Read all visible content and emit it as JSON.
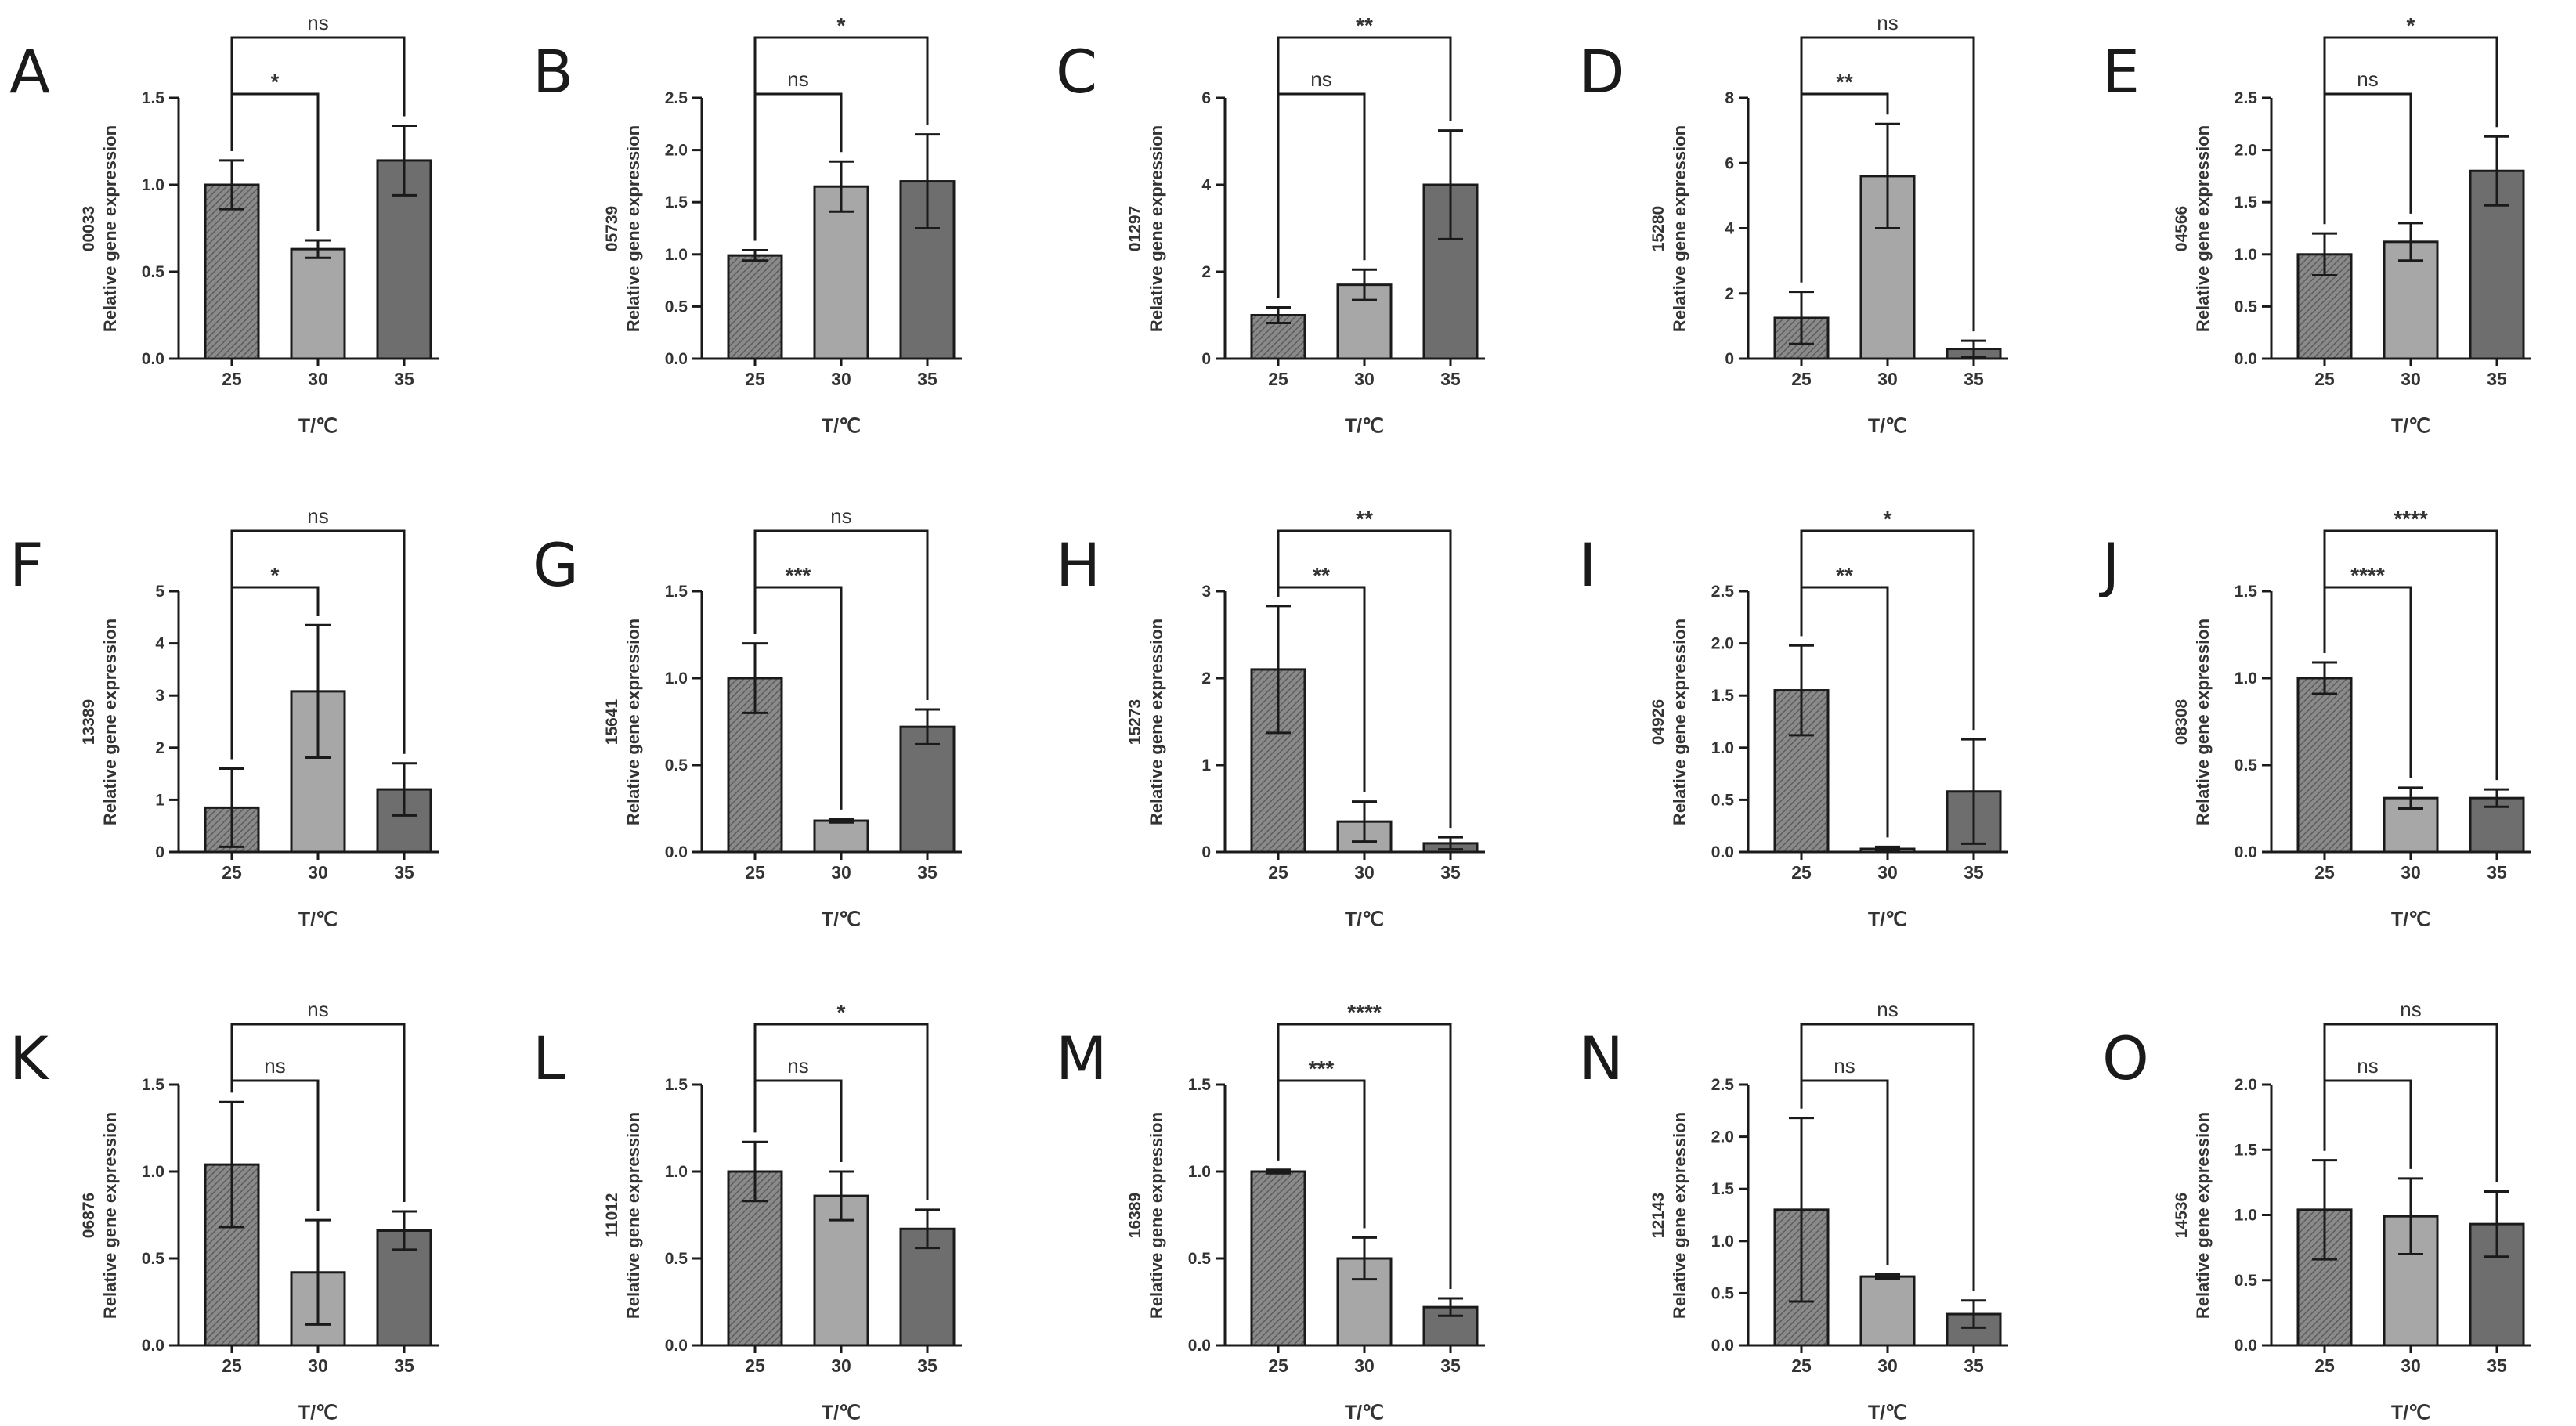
{
  "chart_data": [
    {
      "type": "bar",
      "panel": "A",
      "gene": "00033",
      "categories": [
        "25",
        "30",
        "35"
      ],
      "values": [
        1.0,
        0.63,
        1.14
      ],
      "errors": [
        0.14,
        0.05,
        0.2
      ],
      "ylim": [
        0,
        1.5
      ],
      "yticks": [
        "0.0",
        "0.5",
        "1.0",
        "1.5"
      ],
      "ylabel": "Relative gene expression",
      "xlabel": "T/℃",
      "comparisons": [
        {
          "label": "*",
          "to": "30"
        },
        {
          "label": "ns",
          "to": "35"
        }
      ]
    },
    {
      "type": "bar",
      "panel": "B",
      "gene": "05739",
      "categories": [
        "25",
        "30",
        "35"
      ],
      "values": [
        0.99,
        1.65,
        1.7
      ],
      "errors": [
        0.05,
        0.24,
        0.45
      ],
      "ylim": [
        0,
        2.5
      ],
      "yticks": [
        "0.0",
        "0.5",
        "1.0",
        "1.5",
        "2.0",
        "2.5"
      ],
      "ylabel": "Relative gene expression",
      "xlabel": "T/℃",
      "comparisons": [
        {
          "label": "ns",
          "to": "30"
        },
        {
          "label": "*",
          "to": "35"
        }
      ]
    },
    {
      "type": "bar",
      "panel": "C",
      "gene": "01297",
      "categories": [
        "25",
        "30",
        "35"
      ],
      "values": [
        1.0,
        1.7,
        4.0
      ],
      "errors": [
        0.18,
        0.35,
        1.25
      ],
      "ylim": [
        0,
        6
      ],
      "yticks": [
        "0",
        "2",
        "4",
        "6"
      ],
      "ylabel": "Relative gene expression",
      "xlabel": "T/℃",
      "comparisons": [
        {
          "label": "ns",
          "to": "30"
        },
        {
          "label": "**",
          "to": "35"
        }
      ]
    },
    {
      "type": "bar",
      "panel": "D",
      "gene": "15280",
      "categories": [
        "25",
        "30",
        "35"
      ],
      "values": [
        1.25,
        5.6,
        0.3
      ],
      "errors": [
        0.8,
        1.6,
        0.25
      ],
      "ylim": [
        0,
        8
      ],
      "yticks": [
        "0",
        "2",
        "4",
        "6",
        "8"
      ],
      "ylabel": "Relative gene expression",
      "xlabel": "T/℃",
      "comparisons": [
        {
          "label": "**",
          "to": "30"
        },
        {
          "label": "ns",
          "to": "35"
        }
      ]
    },
    {
      "type": "bar",
      "panel": "E",
      "gene": "04566",
      "categories": [
        "25",
        "30",
        "35"
      ],
      "values": [
        1.0,
        1.12,
        1.8
      ],
      "errors": [
        0.2,
        0.18,
        0.33
      ],
      "ylim": [
        0,
        2.5
      ],
      "yticks": [
        "0.0",
        "0.5",
        "1.0",
        "1.5",
        "2.0",
        "2.5"
      ],
      "ylabel": "Relative gene expression",
      "xlabel": "T/℃",
      "comparisons": [
        {
          "label": "ns",
          "to": "30"
        },
        {
          "label": "*",
          "to": "35"
        }
      ]
    },
    {
      "type": "bar",
      "panel": "F",
      "gene": "13389",
      "categories": [
        "25",
        "30",
        "35"
      ],
      "values": [
        0.85,
        3.08,
        1.2
      ],
      "errors": [
        0.75,
        1.27,
        0.5
      ],
      "ylim": [
        0,
        5
      ],
      "yticks": [
        "0",
        "1",
        "2",
        "3",
        "4",
        "5"
      ],
      "ylabel": "Relative gene expression",
      "xlabel": "T/℃",
      "comparisons": [
        {
          "label": "*",
          "to": "30"
        },
        {
          "label": "ns",
          "to": "35"
        }
      ]
    },
    {
      "type": "bar",
      "panel": "G",
      "gene": "15641",
      "categories": [
        "25",
        "30",
        "35"
      ],
      "values": [
        1.0,
        0.18,
        0.72
      ],
      "errors": [
        0.2,
        0.01,
        0.1
      ],
      "ylim": [
        0,
        1.5
      ],
      "yticks": [
        "0.0",
        "0.5",
        "1.0",
        "1.5"
      ],
      "ylabel": "Relative gene expression",
      "xlabel": "T/℃",
      "comparisons": [
        {
          "label": "***",
          "to": "30"
        },
        {
          "label": "ns",
          "to": "35"
        }
      ]
    },
    {
      "type": "bar",
      "panel": "H",
      "gene": "15273",
      "categories": [
        "25",
        "30",
        "35"
      ],
      "values": [
        2.1,
        0.35,
        0.1
      ],
      "errors": [
        0.73,
        0.23,
        0.07
      ],
      "ylim": [
        0,
        3
      ],
      "yticks": [
        "0",
        "1",
        "2",
        "3"
      ],
      "ylabel": "Relative gene expression",
      "xlabel": "T/℃",
      "comparisons": [
        {
          "label": "**",
          "to": "30"
        },
        {
          "label": "**",
          "to": "35"
        }
      ]
    },
    {
      "type": "bar",
      "panel": "I",
      "gene": "04926",
      "categories": [
        "25",
        "30",
        "35"
      ],
      "values": [
        1.55,
        0.03,
        0.58
      ],
      "errors": [
        0.43,
        0.02,
        0.5
      ],
      "ylim": [
        0,
        2.5
      ],
      "yticks": [
        "0.0",
        "0.5",
        "1.0",
        "1.5",
        "2.0",
        "2.5"
      ],
      "ylabel": "Relative gene expression",
      "xlabel": "T/℃",
      "comparisons": [
        {
          "label": "**",
          "to": "30"
        },
        {
          "label": "*",
          "to": "35"
        }
      ]
    },
    {
      "type": "bar",
      "panel": "J",
      "gene": "08308",
      "categories": [
        "25",
        "30",
        "35"
      ],
      "values": [
        1.0,
        0.31,
        0.31
      ],
      "errors": [
        0.09,
        0.06,
        0.05
      ],
      "ylim": [
        0,
        1.5
      ],
      "yticks": [
        "0.0",
        "0.5",
        "1.0",
        "1.5"
      ],
      "ylabel": "Relative gene expression",
      "xlabel": "T/℃",
      "comparisons": [
        {
          "label": "****",
          "to": "30"
        },
        {
          "label": "****",
          "to": "35"
        }
      ]
    },
    {
      "type": "bar",
      "panel": "K",
      "gene": "06876",
      "categories": [
        "25",
        "30",
        "35"
      ],
      "values": [
        1.04,
        0.42,
        0.66
      ],
      "errors": [
        0.36,
        0.3,
        0.11
      ],
      "ylim": [
        0,
        1.5
      ],
      "yticks": [
        "0.0",
        "0.5",
        "1.0",
        "1.5"
      ],
      "ylabel": "Relative gene expression",
      "xlabel": "T/℃",
      "comparisons": [
        {
          "label": "ns",
          "to": "30"
        },
        {
          "label": "ns",
          "to": "35"
        }
      ]
    },
    {
      "type": "bar",
      "panel": "L",
      "gene": "11012",
      "categories": [
        "25",
        "30",
        "35"
      ],
      "values": [
        1.0,
        0.86,
        0.67
      ],
      "errors": [
        0.17,
        0.14,
        0.11
      ],
      "ylim": [
        0,
        1.5
      ],
      "yticks": [
        "0.0",
        "0.5",
        "1.0",
        "1.5"
      ],
      "ylabel": "Relative gene expression",
      "xlabel": "T/℃",
      "comparisons": [
        {
          "label": "ns",
          "to": "30"
        },
        {
          "label": "*",
          "to": "35"
        }
      ]
    },
    {
      "type": "bar",
      "panel": "M",
      "gene": "16389",
      "categories": [
        "25",
        "30",
        "35"
      ],
      "values": [
        1.0,
        0.5,
        0.22
      ],
      "errors": [
        0.01,
        0.12,
        0.05
      ],
      "ylim": [
        0,
        1.5
      ],
      "yticks": [
        "0.0",
        "0.5",
        "1.0",
        "1.5"
      ],
      "ylabel": "Relative gene expression",
      "xlabel": "T/℃",
      "comparisons": [
        {
          "label": "***",
          "to": "30"
        },
        {
          "label": "****",
          "to": "35"
        }
      ]
    },
    {
      "type": "bar",
      "panel": "N",
      "gene": "12143",
      "categories": [
        "25",
        "30",
        "35"
      ],
      "values": [
        1.3,
        0.66,
        0.3
      ],
      "errors": [
        0.88,
        0.02,
        0.13
      ],
      "ylim": [
        0,
        2.5
      ],
      "yticks": [
        "0.0",
        "0.5",
        "1.0",
        "1.5",
        "2.0",
        "2.5"
      ],
      "ylabel": "Relative gene expression",
      "xlabel": "T/℃",
      "comparisons": [
        {
          "label": "ns",
          "to": "30"
        },
        {
          "label": "ns",
          "to": "35"
        }
      ]
    },
    {
      "type": "bar",
      "panel": "O",
      "gene": "14536",
      "categories": [
        "25",
        "30",
        "35"
      ],
      "values": [
        1.04,
        0.99,
        0.93
      ],
      "errors": [
        0.38,
        0.29,
        0.25
      ],
      "ylim": [
        0,
        2.0
      ],
      "yticks": [
        "0.0",
        "0.5",
        "1.0",
        "1.5",
        "2.0"
      ],
      "ylabel": "Relative gene expression",
      "xlabel": "T/℃",
      "comparisons": [
        {
          "label": "ns",
          "to": "30"
        },
        {
          "label": "ns",
          "to": "35"
        }
      ]
    }
  ],
  "colors": {
    "bar_25": "#7a7a7a",
    "bar_30": "#a7a7a7",
    "bar_35": "#6e6e6e",
    "stroke": "#1a1a1a",
    "text": "#333333"
  }
}
